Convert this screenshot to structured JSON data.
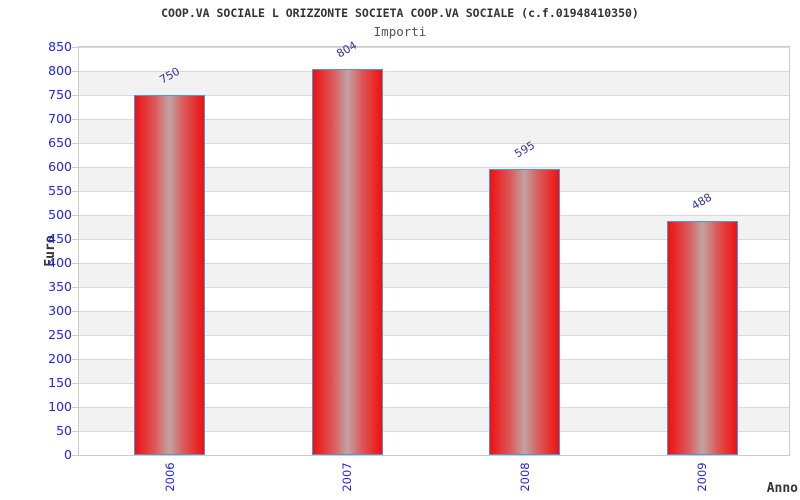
{
  "chart_data": {
    "type": "bar",
    "title": "COOP.VA SOCIALE L ORIZZONTE SOCIETA COOP.VA SOCIALE (c.f.01948410350)",
    "subtitle": "Importi",
    "xlabel": "Anno",
    "ylabel": "Euro",
    "categories": [
      "2006",
      "2007",
      "2008",
      "2009"
    ],
    "values": [
      750,
      804,
      595,
      488
    ],
    "ylim": [
      0,
      850
    ],
    "ytick_step": 50,
    "grid": "horizontal-bands",
    "legend": "none",
    "colors": {
      "bar_edge_red": "#ee1111",
      "bar_center_highlight": "#c2a3a3",
      "bar_border_blue": "#4d94eb",
      "axis_tick_label_blue": "#2222ee",
      "value_label_navy": "#333399",
      "band_gray": "#f2f2f2",
      "gridline_gray": "#d9d9d9",
      "plot_border_gray": "#cccccc",
      "title_color": "#333333",
      "subtitle_color": "#555555"
    }
  }
}
